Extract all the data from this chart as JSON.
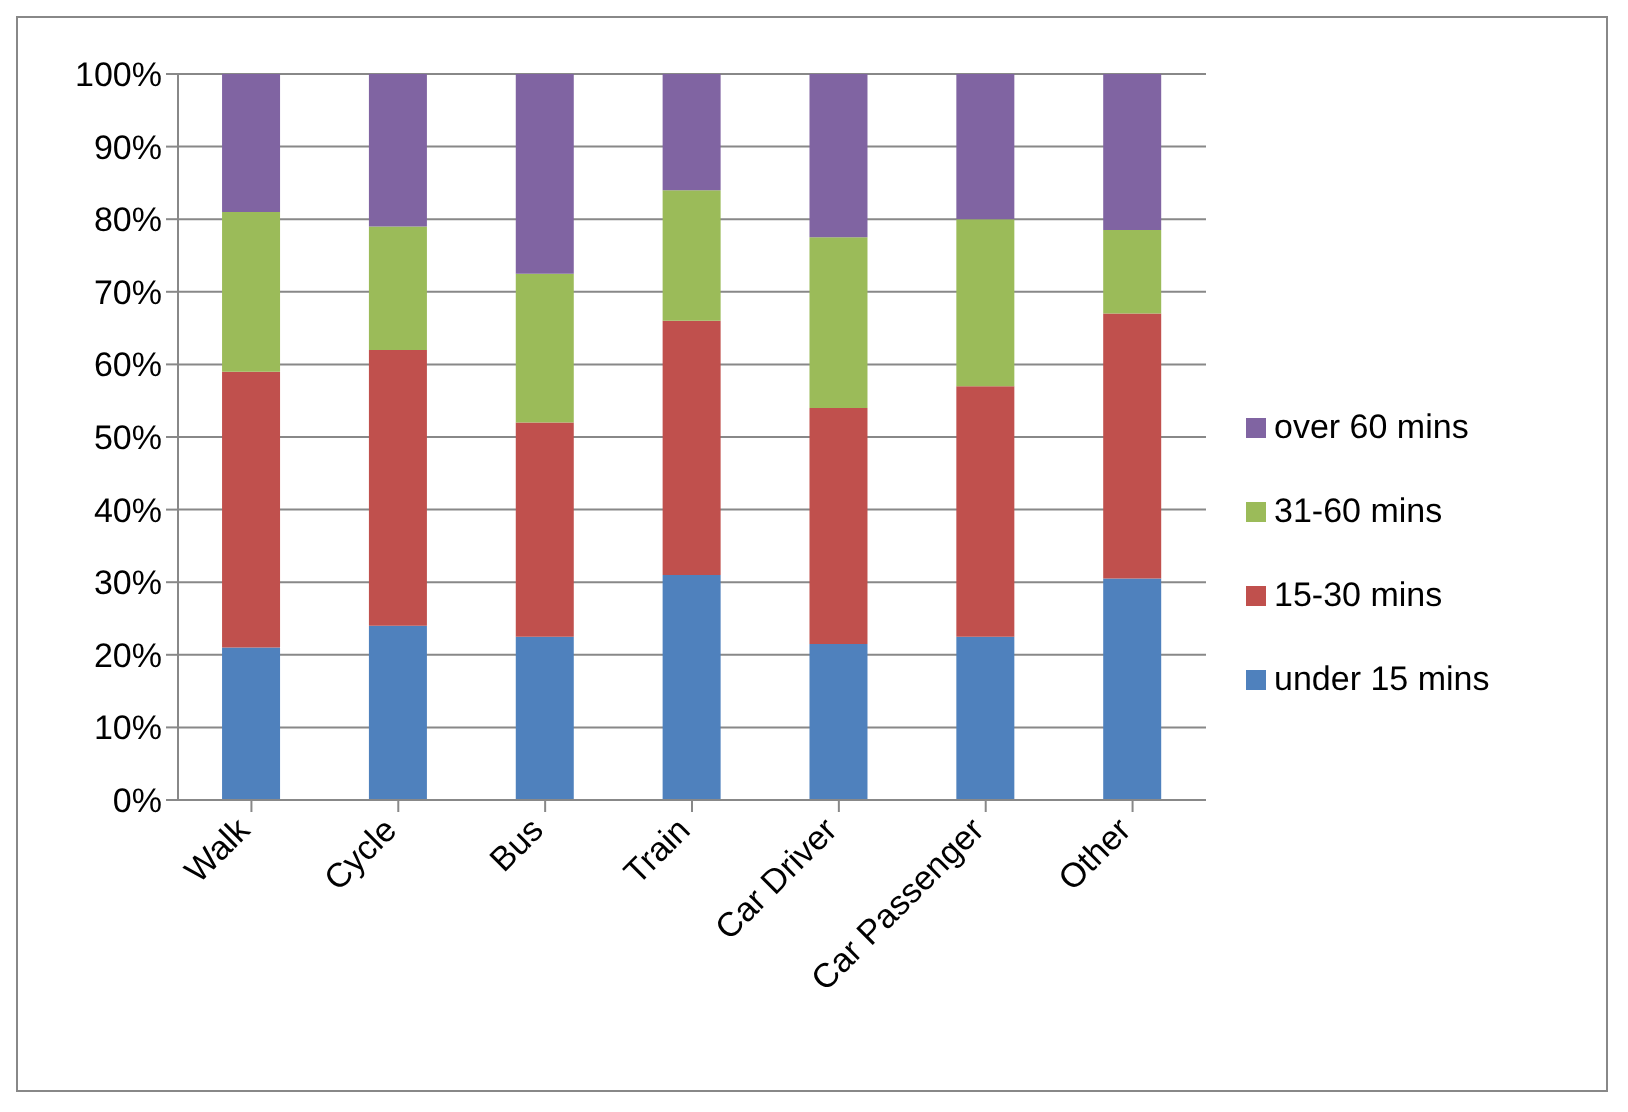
{
  "chart_data": {
    "type": "bar",
    "stacked": true,
    "categories": [
      "Walk",
      "Cycle",
      "Bus",
      "Train",
      "Car Driver",
      "Car Passenger",
      "Other"
    ],
    "series": [
      {
        "name": "under 15 mins",
        "color": "#4f81bd",
        "values": [
          21,
          24,
          22.5,
          31,
          21.5,
          22.5,
          30.5
        ]
      },
      {
        "name": "15-30 mins",
        "color": "#c0504d",
        "values": [
          38,
          38,
          29.5,
          35,
          32.5,
          34.5,
          36.5
        ]
      },
      {
        "name": "31-60 mins",
        "color": "#9bbb59",
        "values": [
          22,
          17,
          20.5,
          18,
          23.5,
          23,
          11.5
        ]
      },
      {
        "name": "over 60 mins",
        "color": "#8064a2",
        "values": [
          19,
          21,
          27.5,
          16,
          22.5,
          20,
          21.5
        ]
      }
    ],
    "ylim": [
      0,
      100
    ],
    "yticks": [
      {
        "value": 0,
        "label": "0%"
      },
      {
        "value": 10,
        "label": "10%"
      },
      {
        "value": 20,
        "label": "20%"
      },
      {
        "value": 30,
        "label": "30%"
      },
      {
        "value": 40,
        "label": "40%"
      },
      {
        "value": 50,
        "label": "50%"
      },
      {
        "value": 60,
        "label": "60%"
      },
      {
        "value": 70,
        "label": "70%"
      },
      {
        "value": 80,
        "label": "80%"
      },
      {
        "value": 90,
        "label": "90%"
      },
      {
        "value": 100,
        "label": "100%"
      }
    ],
    "grid": "y",
    "legend": "right"
  }
}
